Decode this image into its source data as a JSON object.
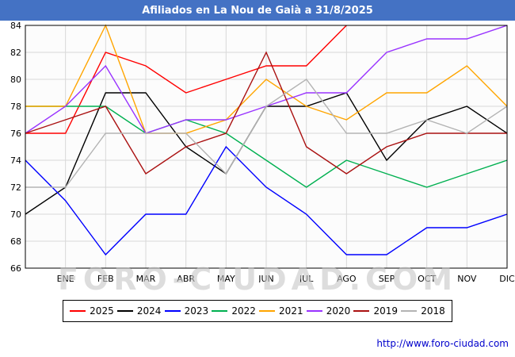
{
  "header": {
    "title": "Afiliados en La Nou de Gaià a 31/8/2025"
  },
  "watermark": "FORO-CIUDAD.COM",
  "footer": {
    "url": "http://www.foro-ciudad.com"
  },
  "colors": {
    "title_bar": "#4472c4",
    "plot_bg": "#fcfcfc",
    "grid": "#d8d8d8",
    "axis": "#000000",
    "footer_link": "#0000cc"
  },
  "chart_data": {
    "type": "line",
    "title": "Afiliados en La Nou de Gaià a 31/8/2025",
    "xlabel": "",
    "ylabel": "",
    "ylim": [
      66,
      84
    ],
    "yticks": [
      66,
      68,
      70,
      72,
      74,
      76,
      78,
      80,
      82,
      84
    ],
    "grid": true,
    "legend_position": "bottom",
    "x_tick_labels": [
      "ENE",
      "FEB",
      "MAR",
      "ABR",
      "MAY",
      "JUN",
      "JUL",
      "AGO",
      "SEP",
      "OCT",
      "NOV",
      "DIC"
    ],
    "series": [
      {
        "name": "2025",
        "color": "#ff0000",
        "start": 76,
        "values": [
          76,
          82,
          81,
          79,
          80,
          81,
          81,
          84,
          null,
          null,
          null,
          null
        ]
      },
      {
        "name": "2024",
        "color": "#000000",
        "start": 70,
        "values": [
          72,
          79,
          79,
          75,
          73,
          78,
          78,
          79,
          74,
          77,
          78,
          76
        ]
      },
      {
        "name": "2023",
        "color": "#0000ff",
        "start": 74,
        "values": [
          71,
          67,
          70,
          70,
          75,
          72,
          70,
          67,
          67,
          69,
          69,
          70
        ]
      },
      {
        "name": "2022",
        "color": "#00b050",
        "start": 78,
        "values": [
          78,
          78,
          76,
          77,
          76,
          74,
          72,
          74,
          73,
          72,
          73,
          74
        ]
      },
      {
        "name": "2021",
        "color": "#ffa500",
        "start": 78,
        "values": [
          78,
          84,
          76,
          76,
          77,
          80,
          78,
          77,
          79,
          79,
          81,
          78
        ]
      },
      {
        "name": "2020",
        "color": "#9933ff",
        "start": 76,
        "values": [
          78,
          81,
          76,
          77,
          77,
          78,
          79,
          79,
          82,
          83,
          83,
          84
        ]
      },
      {
        "name": "2019",
        "color": "#aa1111",
        "start": 76,
        "values": [
          77,
          78,
          73,
          75,
          76,
          82,
          75,
          73,
          75,
          76,
          76,
          76
        ]
      },
      {
        "name": "2018",
        "color": "#b3b3b3",
        "start": 72,
        "values": [
          72,
          76,
          76,
          76,
          73,
          78,
          80,
          76,
          76,
          77,
          76,
          78
        ]
      }
    ]
  }
}
